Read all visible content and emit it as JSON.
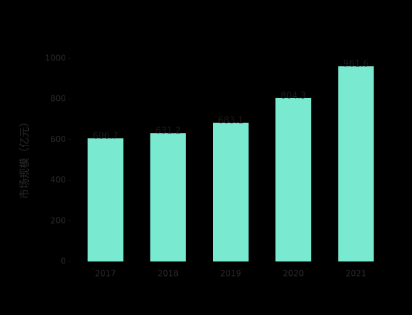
{
  "chart_data": {
    "type": "bar",
    "y_label": "市场规模（亿元）",
    "categories": [
      "2017",
      "2018",
      "2019",
      "2020",
      "2021"
    ],
    "values": [
      606.7,
      631.2,
      683.1,
      804.3,
      961.6
    ],
    "color": "#79e9cf",
    "ylim": [
      0,
      1000
    ],
    "yticks": [
      0,
      200,
      400,
      600,
      800,
      1000
    ]
  }
}
